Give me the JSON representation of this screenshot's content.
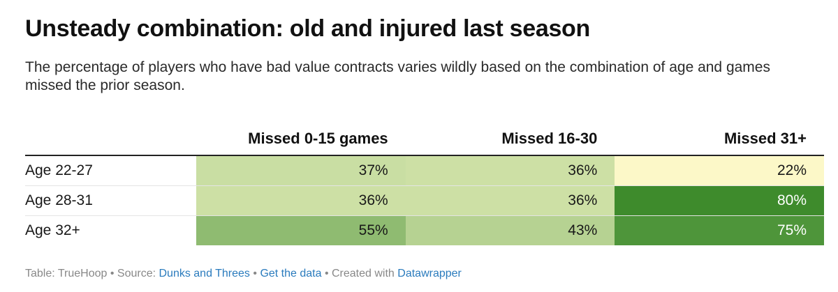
{
  "title": "Unsteady combination: old and injured last season",
  "subtitle": "The percentage of players who have bad value contracts varies wildly based on the combination of age and games missed the prior season.",
  "chart_data": {
    "type": "table",
    "columns": [
      "Missed 0-15 games",
      "Missed 16-30",
      "Missed 31+"
    ],
    "rows": [
      {
        "label": "Age 22-27",
        "values": [
          "37%",
          "36%",
          "22%"
        ]
      },
      {
        "label": "Age 28-31",
        "values": [
          "36%",
          "36%",
          "80%"
        ]
      },
      {
        "label": "Age 32+",
        "values": [
          "55%",
          "43%",
          "75%"
        ]
      }
    ],
    "color_scale": {
      "low": "#fcf8c8",
      "mid": "#cbdfa4",
      "high": "#3e8b2c",
      "min": 22,
      "max": 80
    }
  },
  "footer": {
    "prefix": "Table: TrueHoop • Source: ",
    "source_link": "Dunks and Threes",
    "sep1": " • ",
    "data_link": "Get the data",
    "sep2": " • Created with ",
    "tool_link": "Datawrapper"
  }
}
